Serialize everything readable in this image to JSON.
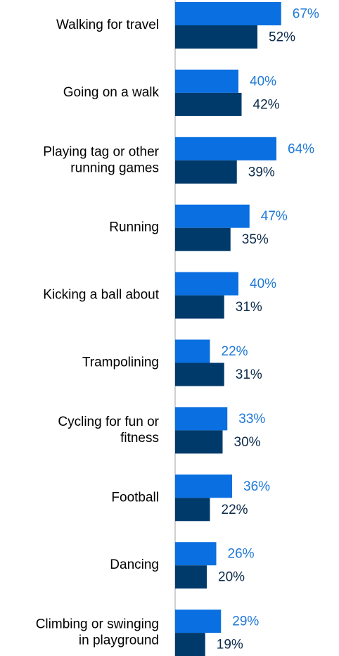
{
  "chart_data": {
    "type": "bar",
    "orientation": "horizontal",
    "categories": [
      "Walking for travel",
      "Going on a walk",
      "Playing tag or other running games",
      "Running",
      "Kicking a ball about",
      "Trampolining",
      "Cycling for fun or fitness",
      "Football",
      "Dancing",
      "Climbing or swinging in playground"
    ],
    "category_lines": [
      [
        "Walking for travel"
      ],
      [
        "Going on a walk"
      ],
      [
        "Playing tag or other",
        "running games"
      ],
      [
        "Running"
      ],
      [
        "Kicking a ball about"
      ],
      [
        "Trampolining"
      ],
      [
        "Cycling for fun or",
        "fitness"
      ],
      [
        "Football"
      ],
      [
        "Dancing"
      ],
      [
        "Climbing or swinging",
        "in playground"
      ]
    ],
    "series": [
      {
        "values": [
          67,
          40,
          64,
          47,
          40,
          22,
          33,
          36,
          26,
          29
        ],
        "labels": [
          "67%",
          "40%",
          "64%",
          "47%",
          "40%",
          "22%",
          "33%",
          "36%",
          "26%",
          "29%"
        ],
        "color": "#0A6FE0",
        "label_color": "#1E78D6"
      },
      {
        "values": [
          52,
          42,
          39,
          35,
          31,
          31,
          30,
          22,
          20,
          19
        ],
        "labels": [
          "52%",
          "42%",
          "39%",
          "35%",
          "31%",
          "31%",
          "30%",
          "22%",
          "20%",
          "19%"
        ],
        "color": "#003A6B",
        "label_color": "#0B2A4A"
      }
    ],
    "value_unit": "%",
    "xlim": [
      0,
      100
    ],
    "xlabel": "",
    "ylabel": "",
    "title": "",
    "grid": false,
    "legend": "none",
    "axis_color": "#BFBFBF"
  }
}
